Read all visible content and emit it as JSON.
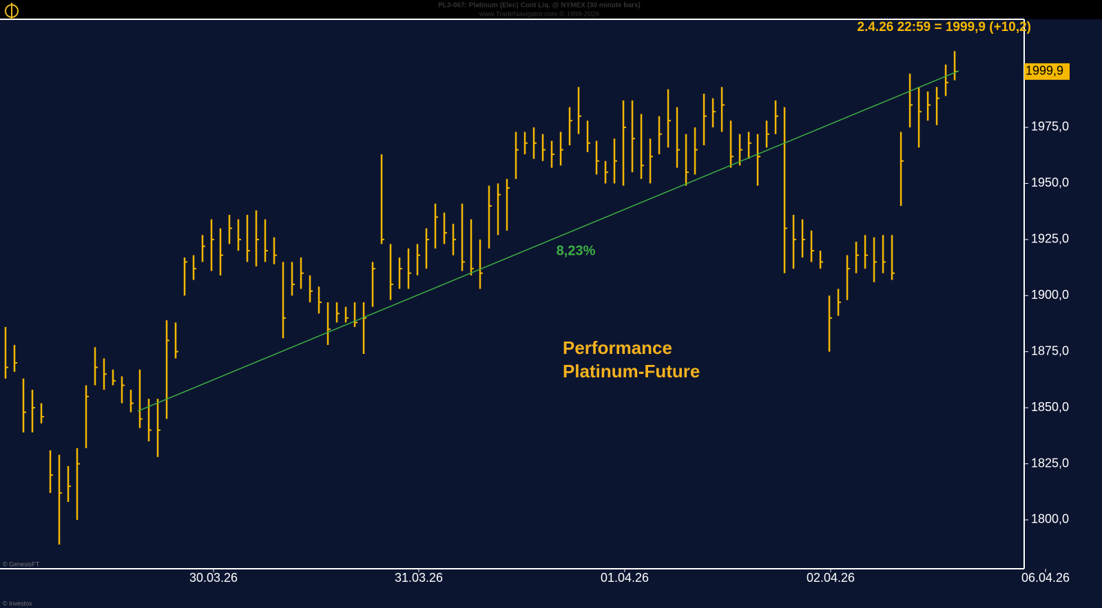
{
  "chart_data": {
    "type": "ohlc",
    "title": "PL3-067:  Platinum (Elec) Cont Liq. @ NYMEX  (30 minute bars)",
    "subtitle": "www.TradeNavigator.com © 1999-2026",
    "quote": "2.4.26 22:59 = 1999,9 (+10,2)",
    "last_price": {
      "value": 1999.9,
      "label": "1999,9"
    },
    "annotation": [
      "Performance",
      "Platinum-Future"
    ],
    "credits": [
      "© GenesisFT",
      "© Investox"
    ],
    "color": "#f5b800",
    "high": [
      1886,
      1878,
      1863,
      1858,
      1852,
      1831,
      1829,
      1824,
      1832,
      1860,
      1877,
      1872,
      1867,
      1864,
      1858,
      1867,
      1854,
      1854,
      1889,
      1888,
      1917,
      1918,
      1927,
      1934,
      1930,
      1936,
      1934,
      1936,
      1938,
      1934,
      1926,
      1915,
      1915,
      1917,
      1909,
      1904,
      1897,
      1897,
      1895,
      1897,
      1897,
      1915,
      1963,
      1923,
      1917,
      1921,
      1923,
      1930,
      1941,
      1937,
      1932,
      1941,
      1934,
      1925,
      1949,
      1950,
      1952,
      1973,
      1973,
      1975,
      1972,
      1969,
      1973,
      1984,
      1993,
      1978,
      1969,
      1960,
      1970,
      1987,
      1987,
      1981,
      1970,
      1980,
      1992,
      1984,
      1972,
      1975,
      1990,
      1988,
      1993,
      1978,
      1972,
      1973,
      1972,
      1978,
      1987,
      1984,
      1936,
      1934,
      1929,
      1920,
      1900,
      1903,
      1918,
      1924,
      1927,
      1926,
      1927,
      1927,
      1973,
      1999,
      1993,
      1991,
      1993,
      2003,
      2009
    ],
    "low": [
      1863,
      1866,
      1839,
      1839,
      1843,
      1812,
      1789,
      1808,
      1800,
      1832,
      1860,
      1858,
      1860,
      1852,
      1848,
      1841,
      1835,
      1828,
      1845,
      1872,
      1900,
      1907,
      1915,
      1911,
      1909,
      1923,
      1920,
      1915,
      1913,
      1915,
      1914,
      1881,
      1900,
      1903,
      1897,
      1892,
      1878,
      1888,
      1888,
      1886,
      1874,
      1895,
      1923,
      1898,
      1903,
      1903,
      1909,
      1912,
      1921,
      1923,
      1918,
      1911,
      1909,
      1903,
      1921,
      1927,
      1929,
      1952,
      1963,
      1961,
      1960,
      1957,
      1958,
      1967,
      1972,
      1964,
      1954,
      1950,
      1950,
      1949,
      1955,
      1952,
      1950,
      1963,
      1966,
      1957,
      1949,
      1954,
      1967,
      1975,
      1973,
      1957,
      1958,
      1961,
      1949,
      1966,
      1972,
      1910,
      1912,
      1917,
      1915,
      1912,
      1875,
      1891,
      1898,
      1910,
      1912,
      1906,
      1910,
      1907,
      1940,
      1975,
      1966,
      1978,
      1976,
      1989,
      1996
    ],
    "close": [
      1868,
      1870,
      1848,
      1850,
      1846,
      1820,
      1812,
      1815,
      1825,
      1855,
      1868,
      1865,
      1862,
      1860,
      1852,
      1845,
      1840,
      1840,
      1880,
      1875,
      1915,
      1912,
      1922,
      1925,
      1918,
      1930,
      1925,
      1920,
      1925,
      1920,
      1918,
      1890,
      1905,
      1910,
      1902,
      1897,
      1885,
      1892,
      1890,
      1888,
      1890,
      1912,
      1925,
      1905,
      1912,
      1910,
      1918,
      1925,
      1935,
      1928,
      1925,
      1915,
      1912,
      1910,
      1940,
      1945,
      1948,
      1965,
      1968,
      1968,
      1965,
      1963,
      1965,
      1978,
      1980,
      1968,
      1960,
      1955,
      1960,
      1975,
      1970,
      1958,
      1962,
      1972,
      1978,
      1965,
      1955,
      1965,
      1980,
      1982,
      1985,
      1962,
      1965,
      1968,
      1962,
      1972,
      1980,
      1930,
      1925,
      1925,
      1920,
      1915,
      1890,
      1897,
      1912,
      1918,
      1918,
      1915,
      1915,
      1910,
      1960,
      1985,
      1982,
      1985,
      1988,
      1995,
      1999.9
    ],
    "trend": {
      "label": "8,23%",
      "color": "#3cb043",
      "x": [
        14.77,
        106.46
      ],
      "values": [
        1848.5,
        2000.2
      ]
    },
    "xlim": [
      -0.615,
      116.3
    ],
    "xticks": [
      {
        "value": 23.23,
        "label": "30.03.26"
      },
      {
        "value": 46.15,
        "label": "31.03.26"
      },
      {
        "value": 69.15,
        "label": "01.04.26"
      },
      {
        "value": 92.15,
        "label": "02.04.26"
      },
      {
        "value": 116.15,
        "label": "06.04.26"
      }
    ],
    "ylim": [
      1778.2,
      2023.2
    ],
    "yticks": [
      {
        "value": 1800,
        "label": "1800,0"
      },
      {
        "value": 1825,
        "label": "1825,0"
      },
      {
        "value": 1850,
        "label": "1850,0"
      },
      {
        "value": 1875,
        "label": "1875,0"
      },
      {
        "value": 1900,
        "label": "1900,0"
      },
      {
        "value": 1925,
        "label": "1925,0"
      },
      {
        "value": 1950,
        "label": "1950,0"
      },
      {
        "value": 1975,
        "label": "1975,0"
      }
    ]
  }
}
